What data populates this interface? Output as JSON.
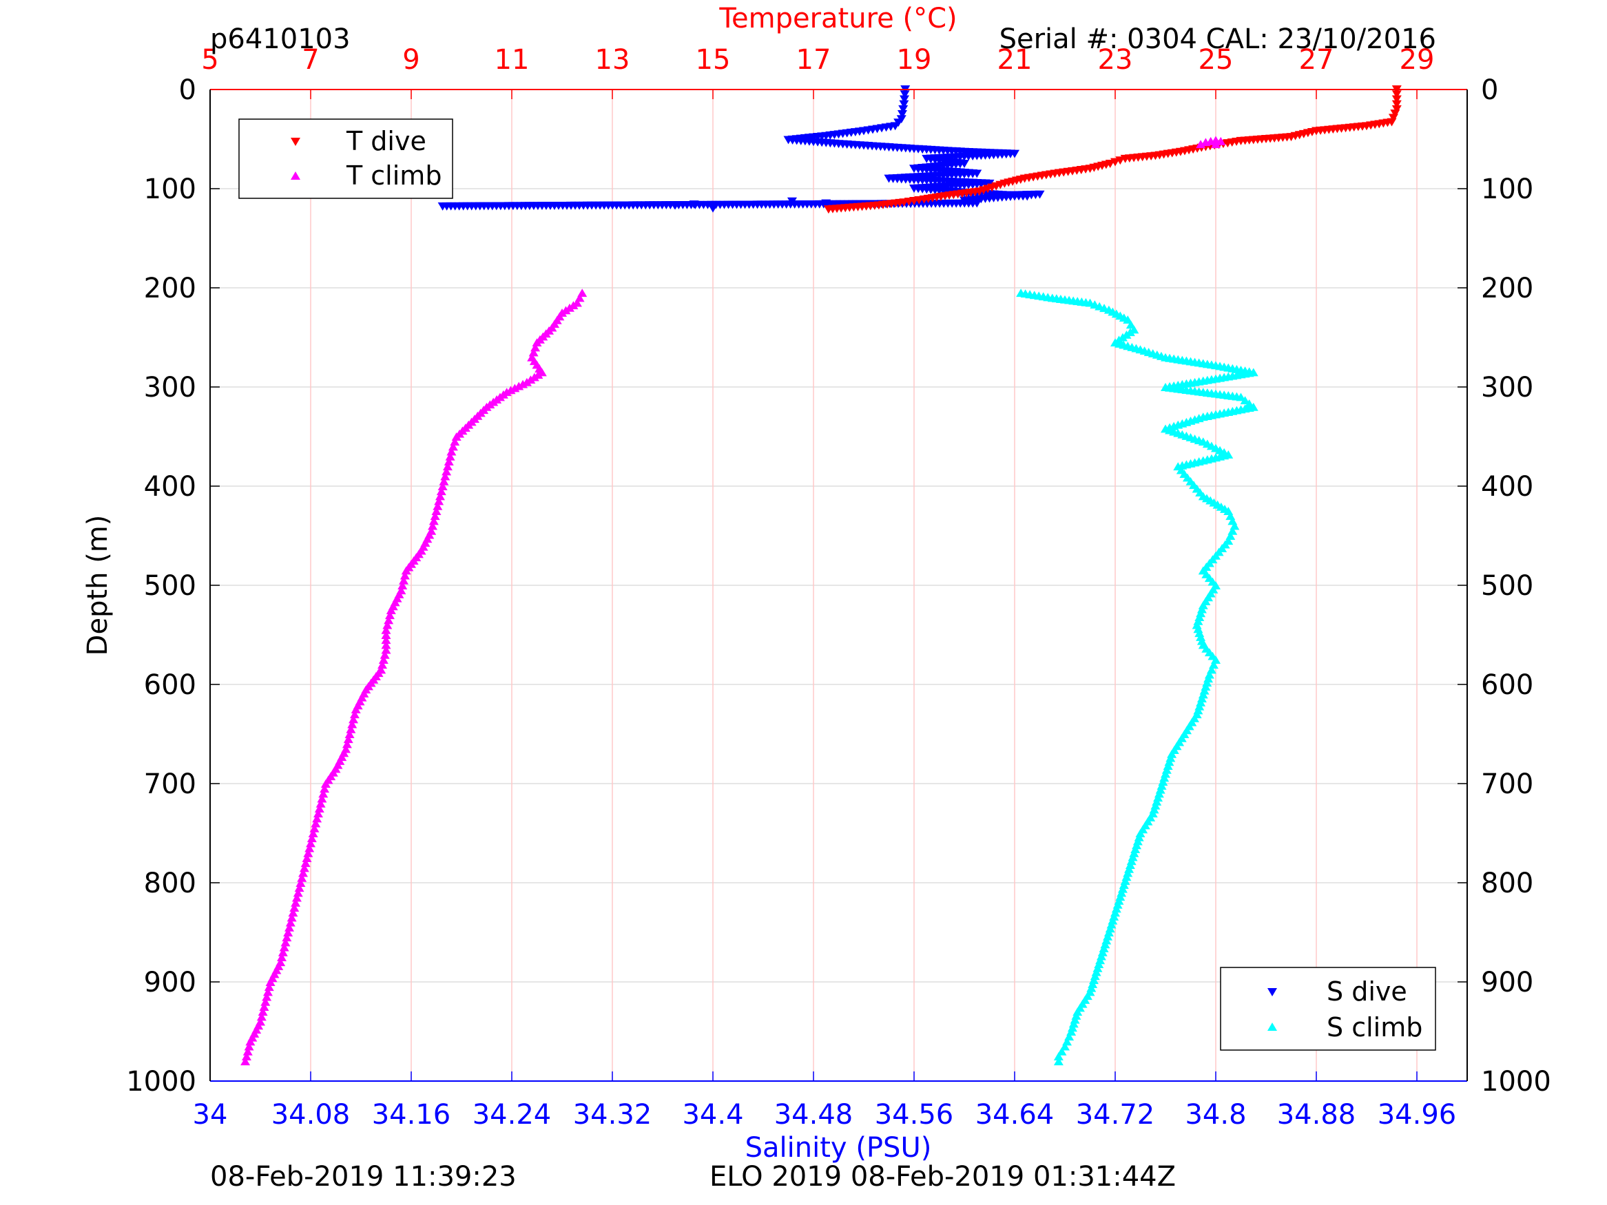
{
  "header": {
    "plot_id": "p6410103",
    "serial": "Serial #: 0304  CAL: 23/10/2016"
  },
  "footer": {
    "left_timestamp": "08-Feb-2019 11:39:23",
    "center_text": "ELO 2019 08-Feb-2019 01:31:44Z"
  },
  "colors": {
    "t_dive": "#ff0000",
    "t_climb": "#ff00ff",
    "s_dive": "#0000ff",
    "s_climb": "#00ffff",
    "temp_axis": "#ff0000",
    "sal_axis": "#0000ff",
    "grid_temp": "#ffc8c8",
    "grid_depth": "#dddddd"
  },
  "chart_data": {
    "type": "scatter",
    "ylabel": "Depth (m)",
    "ylim": [
      0,
      1000
    ],
    "yticks": [
      "0",
      "100",
      "200",
      "300",
      "400",
      "500",
      "600",
      "700",
      "800",
      "900",
      "1000"
    ],
    "y_reversed": true,
    "top_axis": {
      "label": "Temperature (°C)",
      "lim": [
        5,
        30
      ],
      "ticks": [
        "5",
        "7",
        "9",
        "11",
        "13",
        "15",
        "17",
        "19",
        "21",
        "23",
        "25",
        "27",
        "29"
      ]
    },
    "bottom_axis": {
      "label": "Salinity (PSU)",
      "lim": [
        34,
        35
      ],
      "ticks": [
        "34",
        "34.08",
        "34.16",
        "34.24",
        "34.32",
        "34.4",
        "34.48",
        "34.56",
        "34.64",
        "34.72",
        "34.8",
        "34.88",
        "34.96"
      ]
    },
    "legend_temp": {
      "position": "top-left",
      "entries": [
        {
          "label": "T dive",
          "series": "t_dive"
        },
        {
          "label": "T climb",
          "series": "t_climb"
        }
      ]
    },
    "legend_sal": {
      "position": "bottom-right",
      "entries": [
        {
          "label": "S dive",
          "series": "s_dive"
        },
        {
          "label": "S climb",
          "series": "s_climb"
        }
      ]
    },
    "series": [
      {
        "key": "t_dive",
        "axis": "temperature",
        "marker": "triangle-down",
        "points": [
          [
            28.6,
            0
          ],
          [
            28.6,
            20
          ],
          [
            28.5,
            33
          ],
          [
            28.0,
            37
          ],
          [
            27.0,
            42
          ],
          [
            26.5,
            48
          ],
          [
            25.5,
            52
          ],
          [
            24.8,
            58
          ],
          [
            24.3,
            63
          ],
          [
            23.8,
            67
          ],
          [
            23.2,
            70
          ],
          [
            22.9,
            75
          ],
          [
            22.5,
            80
          ],
          [
            21.8,
            85
          ],
          [
            21.2,
            90
          ],
          [
            20.8,
            95
          ],
          [
            20.3,
            103
          ],
          [
            19.7,
            107
          ],
          [
            19.2,
            111
          ],
          [
            18.8,
            114
          ],
          [
            18.3,
            117
          ],
          [
            17.8,
            119
          ],
          [
            17.3,
            121
          ]
        ]
      },
      {
        "key": "t_climb",
        "axis": "temperature",
        "marker": "triangle-up",
        "points": [
          [
            24.7,
            55
          ],
          [
            24.8,
            53
          ],
          [
            24.9,
            52
          ],
          [
            25.0,
            51
          ],
          [
            25.1,
            52
          ],
          [
            25.0,
            55
          ]
        ]
      },
      {
        "key": "s_dive",
        "axis": "salinity",
        "marker": "triangle-down",
        "points": [
          [
            34.553,
            0
          ],
          [
            34.552,
            15
          ],
          [
            34.55,
            30
          ],
          [
            34.545,
            37
          ],
          [
            34.52,
            42
          ],
          [
            34.49,
            47
          ],
          [
            34.46,
            51
          ],
          [
            34.5,
            55
          ],
          [
            34.56,
            60
          ],
          [
            34.6,
            63
          ],
          [
            34.64,
            65
          ],
          [
            34.57,
            70
          ],
          [
            34.6,
            75
          ],
          [
            34.56,
            80
          ],
          [
            34.61,
            85
          ],
          [
            34.54,
            90
          ],
          [
            34.62,
            95
          ],
          [
            34.56,
            100
          ],
          [
            34.6,
            104
          ],
          [
            34.65,
            108
          ],
          [
            34.63,
            107
          ],
          [
            34.66,
            106
          ],
          [
            34.6,
            112
          ],
          [
            34.61,
            115
          ],
          [
            34.185,
            118
          ],
          [
            34.37,
            117
          ],
          [
            34.385,
            116
          ],
          [
            34.4,
            120
          ],
          [
            34.463,
            113
          ],
          [
            34.49,
            115
          ]
        ]
      },
      {
        "key": "s_climb",
        "axis": "salinity",
        "marker": "triangle-up",
        "points": [
          [
            34.645,
            205
          ],
          [
            34.67,
            210
          ],
          [
            34.7,
            215
          ],
          [
            34.715,
            222
          ],
          [
            34.73,
            232
          ],
          [
            34.735,
            242
          ],
          [
            34.72,
            255
          ],
          [
            34.74,
            262
          ],
          [
            34.76,
            270
          ],
          [
            34.8,
            278
          ],
          [
            34.83,
            285
          ],
          [
            34.76,
            300
          ],
          [
            34.82,
            310
          ],
          [
            34.83,
            320
          ],
          [
            34.79,
            330
          ],
          [
            34.76,
            342
          ],
          [
            34.79,
            355
          ],
          [
            34.81,
            368
          ],
          [
            34.77,
            380
          ],
          [
            34.78,
            395
          ],
          [
            34.79,
            410
          ],
          [
            34.81,
            425
          ],
          [
            34.815,
            440
          ],
          [
            34.81,
            455
          ],
          [
            34.8,
            470
          ],
          [
            34.79,
            485
          ],
          [
            34.8,
            500
          ],
          [
            34.79,
            520
          ],
          [
            34.785,
            540
          ],
          [
            34.79,
            560
          ],
          [
            34.8,
            575
          ],
          [
            34.795,
            590
          ],
          [
            34.79,
            610
          ],
          [
            34.785,
            630
          ],
          [
            34.775,
            650
          ],
          [
            34.765,
            670
          ],
          [
            34.76,
            690
          ],
          [
            34.755,
            710
          ],
          [
            34.75,
            730
          ],
          [
            34.74,
            750
          ],
          [
            34.735,
            770
          ],
          [
            34.73,
            790
          ],
          [
            34.725,
            810
          ],
          [
            34.72,
            830
          ],
          [
            34.715,
            850
          ],
          [
            34.71,
            870
          ],
          [
            34.705,
            890
          ],
          [
            34.7,
            910
          ],
          [
            34.69,
            930
          ],
          [
            34.685,
            950
          ],
          [
            34.68,
            965
          ],
          [
            34.675,
            975
          ],
          [
            34.675,
            980
          ]
        ]
      },
      {
        "key": "t_climb_deep",
        "axis": "temperature",
        "marker": "triangle-up",
        "points": [
          [
            12.4,
            205
          ],
          [
            12.3,
            215
          ],
          [
            12.0,
            225
          ],
          [
            11.8,
            240
          ],
          [
            11.5,
            255
          ],
          [
            11.4,
            270
          ],
          [
            11.6,
            285
          ],
          [
            11.3,
            295
          ],
          [
            10.9,
            305
          ],
          [
            10.5,
            320
          ],
          [
            10.2,
            335
          ],
          [
            9.9,
            350
          ],
          [
            9.8,
            365
          ],
          [
            9.7,
            385
          ],
          [
            9.6,
            405
          ],
          [
            9.5,
            425
          ],
          [
            9.4,
            445
          ],
          [
            9.2,
            465
          ],
          [
            8.9,
            485
          ],
          [
            8.8,
            505
          ],
          [
            8.6,
            525
          ],
          [
            8.5,
            545
          ],
          [
            8.5,
            565
          ],
          [
            8.4,
            585
          ],
          [
            8.1,
            605
          ],
          [
            7.9,
            625
          ],
          [
            7.8,
            645
          ],
          [
            7.7,
            665
          ],
          [
            7.5,
            685
          ],
          [
            7.3,
            700
          ],
          [
            7.2,
            720
          ],
          [
            7.1,
            740
          ],
          [
            7.0,
            760
          ],
          [
            6.9,
            780
          ],
          [
            6.8,
            800
          ],
          [
            6.7,
            820
          ],
          [
            6.6,
            840
          ],
          [
            6.5,
            860
          ],
          [
            6.4,
            880
          ],
          [
            6.2,
            900
          ],
          [
            6.1,
            920
          ],
          [
            6.0,
            940
          ],
          [
            5.8,
            960
          ],
          [
            5.7,
            980
          ]
        ]
      }
    ]
  }
}
